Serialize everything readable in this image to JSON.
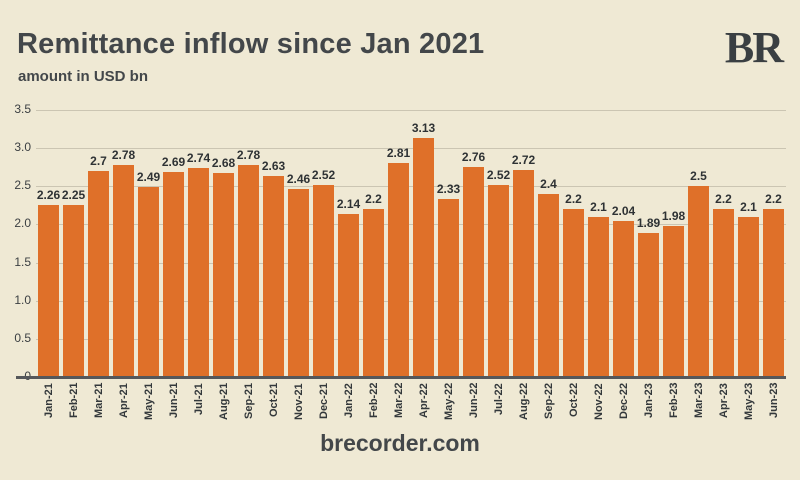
{
  "header": {
    "title": "Remittance inflow since Jan 2021",
    "subtitle": "amount in USD bn",
    "logo": "BR"
  },
  "footer": {
    "site": "brecorder.com"
  },
  "colors": {
    "background": "#EFE9D4",
    "bar": "#DF7029",
    "title_text": "#43474A",
    "gridline": "#CBC5B2",
    "axis_line": "#55575A",
    "value_label": "#2E3234"
  },
  "chart_data": {
    "type": "bar",
    "title": "Remittance inflow since Jan 2021",
    "subtitle": "amount in USD bn",
    "xlabel": "",
    "ylabel": "amount in USD bn",
    "ylim": [
      0,
      3.5
    ],
    "grid": true,
    "legend": false,
    "bar_labels": true,
    "categories": [
      "Jan-21",
      "Feb-21",
      "Mar-21",
      "Apr-21",
      "May-21",
      "Jun-21",
      "Jul-21",
      "Aug-21",
      "Sep-21",
      "Oct-21",
      "Nov-21",
      "Dec-21",
      "Jan-22",
      "Feb-22",
      "Mar-22",
      "Apr-22",
      "May-22",
      "Jun-22",
      "Jul-22",
      "Aug-22",
      "Sep-22",
      "Oct-22",
      "Nov-22",
      "Dec-22",
      "Jan-23",
      "Feb-23",
      "Mar-23",
      "Apr-23",
      "May-23",
      "Jun-23"
    ],
    "values": [
      2.26,
      2.25,
      2.7,
      2.78,
      2.49,
      2.69,
      2.74,
      2.68,
      2.78,
      2.63,
      2.46,
      2.52,
      2.14,
      2.2,
      2.81,
      3.13,
      2.33,
      2.76,
      2.52,
      2.72,
      2.4,
      2.2,
      2.1,
      2.04,
      1.89,
      1.98,
      2.5,
      2.2,
      2.1,
      2.2
    ],
    "yticks": [
      {
        "value": 3.5,
        "label": "3.5"
      },
      {
        "value": 3.0,
        "label": "3.0"
      },
      {
        "value": 2.5,
        "label": "2.5"
      },
      {
        "value": 2.0,
        "label": "2.0"
      },
      {
        "value": 1.5,
        "label": "1.5"
      },
      {
        "value": 1.0,
        "label": "1.0"
      },
      {
        "value": 0.5,
        "label": "0.5"
      },
      {
        "value": 0,
        "label": "0"
      }
    ]
  }
}
